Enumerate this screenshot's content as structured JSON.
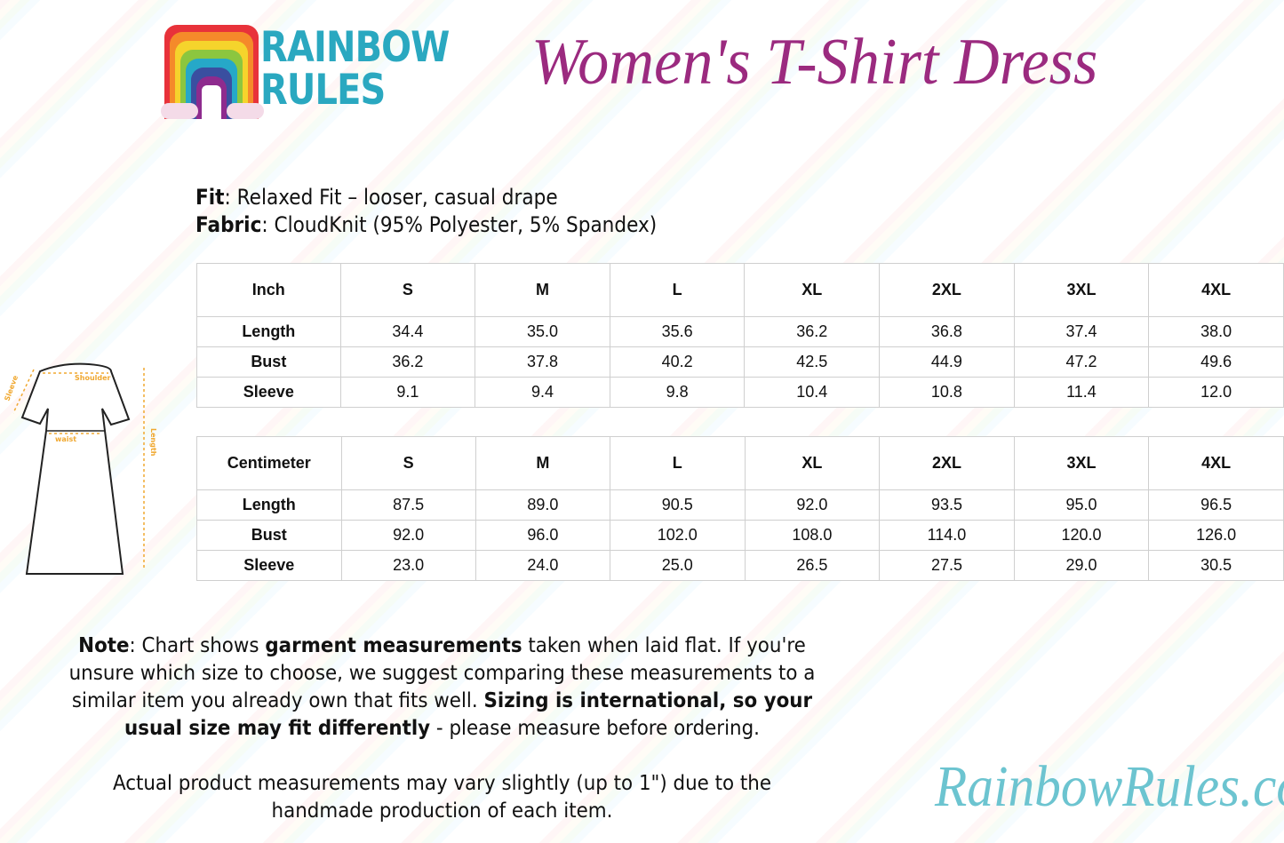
{
  "brand": {
    "logo_text_line1": "RAINBOW",
    "logo_text_line2": "RULES",
    "website": "RainbowRules.com"
  },
  "title": "Women's T-Shirt Dress",
  "specs": {
    "fit_label": "Fit",
    "fit_value": ": Relaxed Fit – looser, casual drape",
    "fabric_label": "Fabric",
    "fabric_value": ": CloudKnit (95% Polyester, 5% Spandex)"
  },
  "diagram": {
    "labels": [
      "Sleeve",
      "Shoulder",
      "waist",
      "Length"
    ]
  },
  "tables": [
    {
      "unit": "Inch",
      "sizes": [
        "S",
        "M",
        "L",
        "XL",
        "2XL",
        "3XL",
        "4XL"
      ],
      "rows": [
        {
          "label": "Length",
          "values": [
            "34.4",
            "35.0",
            "35.6",
            "36.2",
            "36.8",
            "37.4",
            "38.0"
          ]
        },
        {
          "label": "Bust",
          "values": [
            "36.2",
            "37.8",
            "40.2",
            "42.5",
            "44.9",
            "47.2",
            "49.6"
          ]
        },
        {
          "label": "Sleeve",
          "values": [
            "9.1",
            "9.4",
            "9.8",
            "10.4",
            "10.8",
            "11.4",
            "12.0"
          ]
        }
      ]
    },
    {
      "unit": "Centimeter",
      "sizes": [
        "S",
        "M",
        "L",
        "XL",
        "2XL",
        "3XL",
        "4XL"
      ],
      "rows": [
        {
          "label": "Length",
          "values": [
            "87.5",
            "89.0",
            "90.5",
            "92.0",
            "93.5",
            "95.0",
            "96.5"
          ]
        },
        {
          "label": "Bust",
          "values": [
            "92.0",
            "96.0",
            "102.0",
            "108.0",
            "114.0",
            "120.0",
            "126.0"
          ]
        },
        {
          "label": "Sleeve",
          "values": [
            "23.0",
            "24.0",
            "25.0",
            "26.5",
            "27.5",
            "29.0",
            "30.5"
          ]
        }
      ]
    }
  ],
  "note": {
    "p1": "Note",
    "p2": ": Chart shows ",
    "p3": "garment measurements",
    "p4": " taken when laid flat. If you're unsure which size to choose, we suggest comparing these measurements to a similar item you already own that fits well. ",
    "p5": "Sizing is international, so your usual size may fit differently",
    "p6": " - please measure before ordering."
  },
  "disclaimer": "Actual product measurements may vary slightly (up to 1\") due to the handmade production of each item.",
  "colors": {
    "title": "#9b2a7f",
    "logo_text": "#2aa8c0",
    "website": "#6cc4d0",
    "diagram_accent": "#f0a830"
  }
}
